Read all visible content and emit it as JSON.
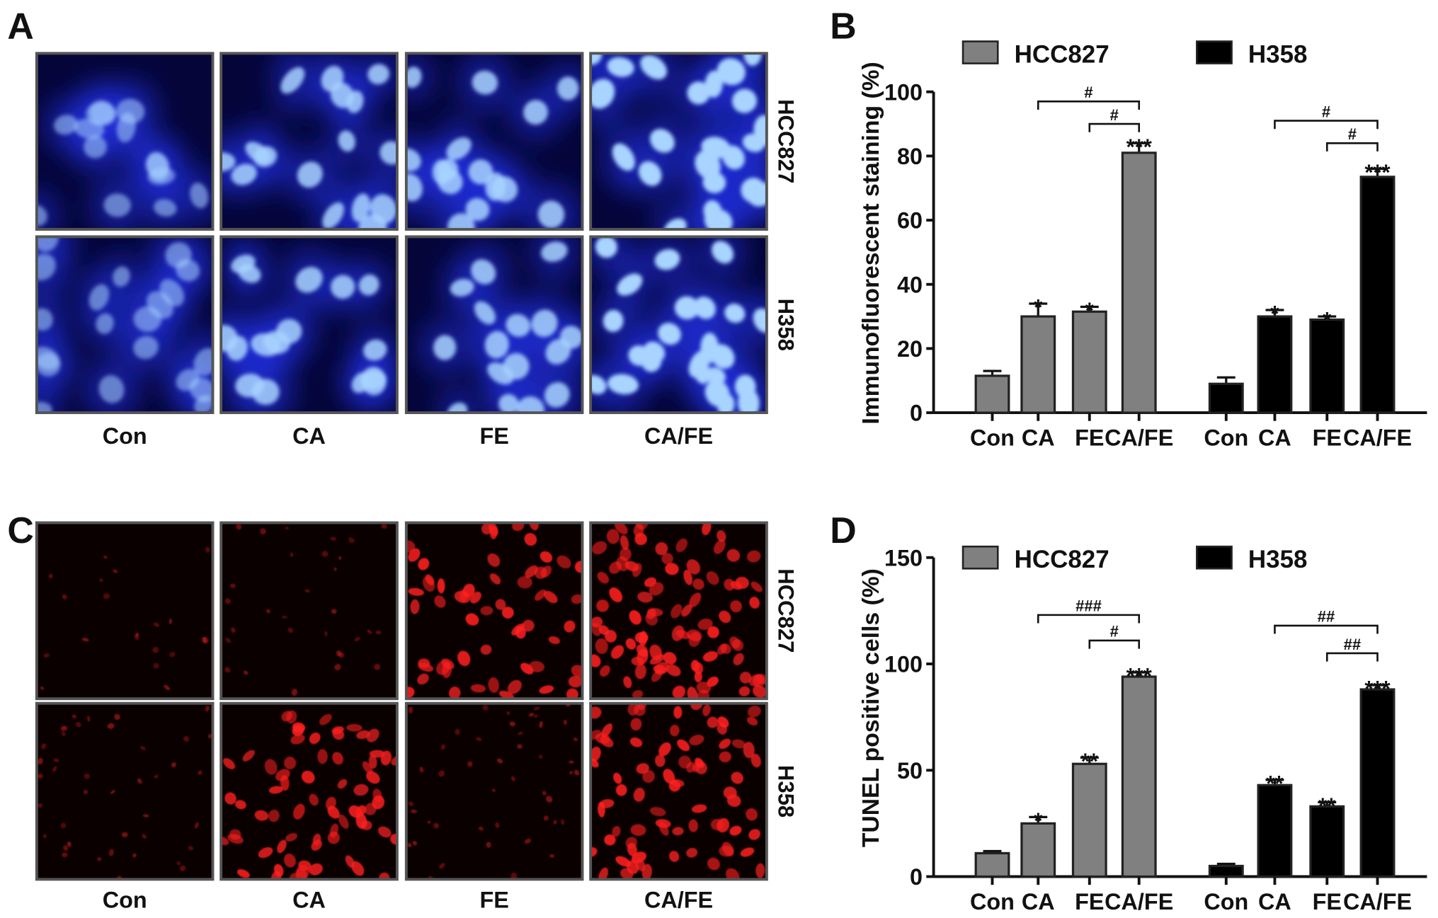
{
  "panels": {
    "A": {
      "letter": "A",
      "columns": [
        "Con",
        "CA",
        "FE",
        "CA/FE"
      ],
      "rows": [
        "HCC827",
        "H358"
      ],
      "stain": "blue",
      "colors": {
        "background": "#05053a",
        "nucleus": "#a8d4ff"
      }
    },
    "C": {
      "letter": "C",
      "columns": [
        "Con",
        "CA",
        "FE",
        "CA/FE"
      ],
      "rows": [
        "HCC827",
        "H358"
      ],
      "stain": "red",
      "colors": {
        "background": "#0a0000",
        "nucleus": "#ff2020"
      }
    },
    "B": {
      "letter": "B"
    },
    "D": {
      "letter": "D"
    }
  },
  "chart_data": [
    {
      "panel": "B",
      "type": "bar",
      "ylabel": "Immunofluorescent staining (%)",
      "ylim": [
        0,
        100
      ],
      "yticks": [
        0,
        20,
        40,
        60,
        80,
        100
      ],
      "categories": [
        "Con",
        "CA",
        "FE",
        "CA/FE"
      ],
      "legend": {
        "placement": "top"
      },
      "series": [
        {
          "name": "HCC827",
          "color": "#808080",
          "values": [
            11.5,
            30,
            31.5,
            81
          ],
          "errors": [
            1.5,
            4,
            1.5,
            3
          ],
          "stars": [
            "",
            "*",
            "*",
            "***"
          ]
        },
        {
          "name": "H358",
          "color": "#000000",
          "values": [
            9,
            30,
            29,
            73.5
          ],
          "errors": [
            2,
            2,
            1,
            2.5
          ],
          "stars": [
            "",
            "*",
            "*",
            "***"
          ]
        }
      ],
      "brackets": [
        {
          "series": 0,
          "from": 1,
          "to": 3,
          "level": 97,
          "label": "#"
        },
        {
          "series": 0,
          "from": 2,
          "to": 3,
          "level": 90,
          "label": "#"
        },
        {
          "series": 1,
          "from": 1,
          "to": 3,
          "level": 91,
          "label": "#"
        },
        {
          "series": 1,
          "from": 2,
          "to": 3,
          "level": 84,
          "label": "#"
        }
      ]
    },
    {
      "panel": "D",
      "type": "bar",
      "ylabel": "TUNEL positive cells (%)",
      "ylim": [
        0,
        150
      ],
      "yticks": [
        0,
        50,
        100,
        150
      ],
      "categories": [
        "Con",
        "CA",
        "FE",
        "CA/FE"
      ],
      "legend": {
        "placement": "top"
      },
      "series": [
        {
          "name": "HCC827",
          "color": "#808080",
          "values": [
            11,
            25,
            53,
            94
          ],
          "errors": [
            1,
            3,
            3,
            2
          ],
          "stars": [
            "",
            "*",
            "**",
            "***"
          ]
        },
        {
          "name": "H358",
          "color": "#000000",
          "values": [
            5,
            43,
            33,
            88
          ],
          "errors": [
            1,
            2.5,
            2,
            2
          ],
          "stars": [
            "",
            "**",
            "**",
            "***"
          ]
        }
      ],
      "brackets": [
        {
          "series": 0,
          "from": 1,
          "to": 3,
          "level": 123,
          "label": "###"
        },
        {
          "series": 0,
          "from": 2,
          "to": 3,
          "level": 111,
          "label": "#"
        },
        {
          "series": 1,
          "from": 1,
          "to": 3,
          "level": 118,
          "label": "##"
        },
        {
          "series": 1,
          "from": 2,
          "to": 3,
          "level": 105,
          "label": "##"
        }
      ]
    }
  ]
}
